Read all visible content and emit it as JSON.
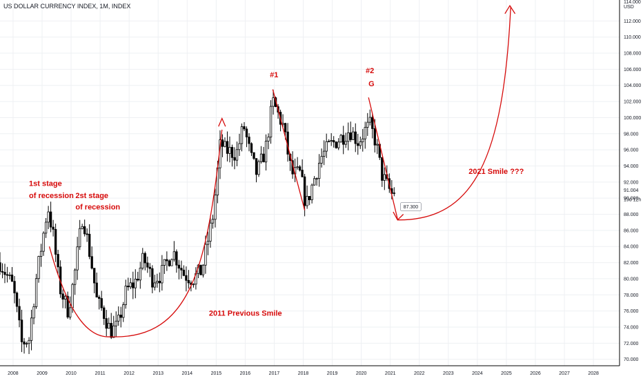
{
  "chart_data": {
    "type": "candlestick",
    "title": "US DOLLAR CURRENCY INDEX, 1M, INDEX",
    "currency_label": "USD",
    "top_label": "114.000",
    "ylim": [
      69.2,
      114.6
    ],
    "xlim": [
      2007.55,
      2028.9
    ],
    "y_ticks": [
      "70.000",
      "72.000",
      "74.000",
      "76.000",
      "78.000",
      "80.000",
      "82.000",
      "84.000",
      "86.000",
      "88.000",
      "90.000",
      "92.000",
      "94.000",
      "96.000",
      "98.000",
      "100.000",
      "102.000",
      "104.000",
      "106.000",
      "108.000",
      "110.000",
      "112.000"
    ],
    "x_ticks": [
      "2008",
      "2009",
      "2010",
      "2011",
      "2012",
      "2013",
      "2014",
      "2015",
      "2016",
      "2017",
      "2018",
      "2019",
      "2020",
      "2021",
      "2022",
      "2023",
      "2024",
      "2025",
      "2026",
      "2027",
      "2028"
    ],
    "last_price_label": "91.004",
    "countdown_label": "19d 12h",
    "target_label": "87.300",
    "grid": true,
    "candle_colors": {
      "up": "#ffffff",
      "down": "#000000",
      "border": "#000000"
    },
    "annotation_color": "#d60a0a",
    "anchors": [
      [
        2007.55,
        82.0
      ],
      [
        2008.0,
        79.0
      ],
      [
        2008.3,
        72.0
      ],
      [
        2008.55,
        72.5
      ],
      [
        2008.8,
        80.0
      ],
      [
        2009.2,
        89.0
      ],
      [
        2009.4,
        85.0
      ],
      [
        2009.6,
        79.0
      ],
      [
        2009.9,
        76.0
      ],
      [
        2010.1,
        80.0
      ],
      [
        2010.4,
        88.0
      ],
      [
        2010.7,
        82.0
      ],
      [
        2010.9,
        77.0
      ],
      [
        2011.1,
        76.0
      ],
      [
        2011.35,
        73.5
      ],
      [
        2011.6,
        74.0
      ],
      [
        2011.9,
        78.5
      ],
      [
        2012.2,
        79.5
      ],
      [
        2012.5,
        82.5
      ],
      [
        2012.8,
        80.0
      ],
      [
        2013.1,
        80.5
      ],
      [
        2013.5,
        83.5
      ],
      [
        2013.9,
        80.5
      ],
      [
        2014.2,
        80.0
      ],
      [
        2014.5,
        81.0
      ],
      [
        2014.9,
        88.0
      ],
      [
        2015.15,
        97.0
      ],
      [
        2015.3,
        96.0
      ],
      [
        2015.7,
        95.5
      ],
      [
        2015.95,
        99.0
      ],
      [
        2016.2,
        95.0
      ],
      [
        2016.4,
        93.0
      ],
      [
        2016.7,
        96.0
      ],
      [
        2016.95,
        102.0
      ],
      [
        2017.3,
        99.0
      ],
      [
        2017.6,
        93.0
      ],
      [
        2017.9,
        93.0
      ],
      [
        2018.1,
        89.0
      ],
      [
        2018.3,
        91.5
      ],
      [
        2018.6,
        95.0
      ],
      [
        2018.9,
        96.5
      ],
      [
        2019.3,
        97.5
      ],
      [
        2019.6,
        98.5
      ],
      [
        2019.9,
        97.0
      ],
      [
        2020.15,
        98.5
      ],
      [
        2020.3,
        99.0
      ],
      [
        2020.5,
        97.0
      ],
      [
        2020.7,
        93.0
      ],
      [
        2020.9,
        91.5
      ],
      [
        2021.05,
        90.5
      ],
      [
        2021.15,
        91.0
      ]
    ],
    "annotations": [
      {
        "id": "stage1_line1",
        "text": "1st stage",
        "x": 2008.55,
        "y": 91.5,
        "size": 11
      },
      {
        "id": "stage1_line2",
        "text": "of recession",
        "x": 2008.55,
        "y": 90.0,
        "size": 11
      },
      {
        "id": "stage2_line1",
        "text": "2st stage",
        "x": 2010.15,
        "y": 90.0,
        "size": 11
      },
      {
        "id": "stage2_line2",
        "text": "of recession",
        "x": 2010.15,
        "y": 88.6,
        "size": 11
      },
      {
        "id": "peak1",
        "text": "#1",
        "x": 2016.85,
        "y": 105.0,
        "size": 11
      },
      {
        "id": "peak2",
        "text": "#2",
        "x": 2020.15,
        "y": 105.5,
        "size": 11
      },
      {
        "id": "g_mark",
        "text": "G",
        "x": 2020.25,
        "y": 103.9,
        "size": 11
      },
      {
        "id": "smile_2011",
        "text": "2011 Previous Smile",
        "x": 2014.75,
        "y": 75.4,
        "size": 11
      },
      {
        "id": "smile_2021",
        "text": "2021 Smile ???",
        "x": 2023.7,
        "y": 93.0,
        "size": 11
      }
    ]
  }
}
